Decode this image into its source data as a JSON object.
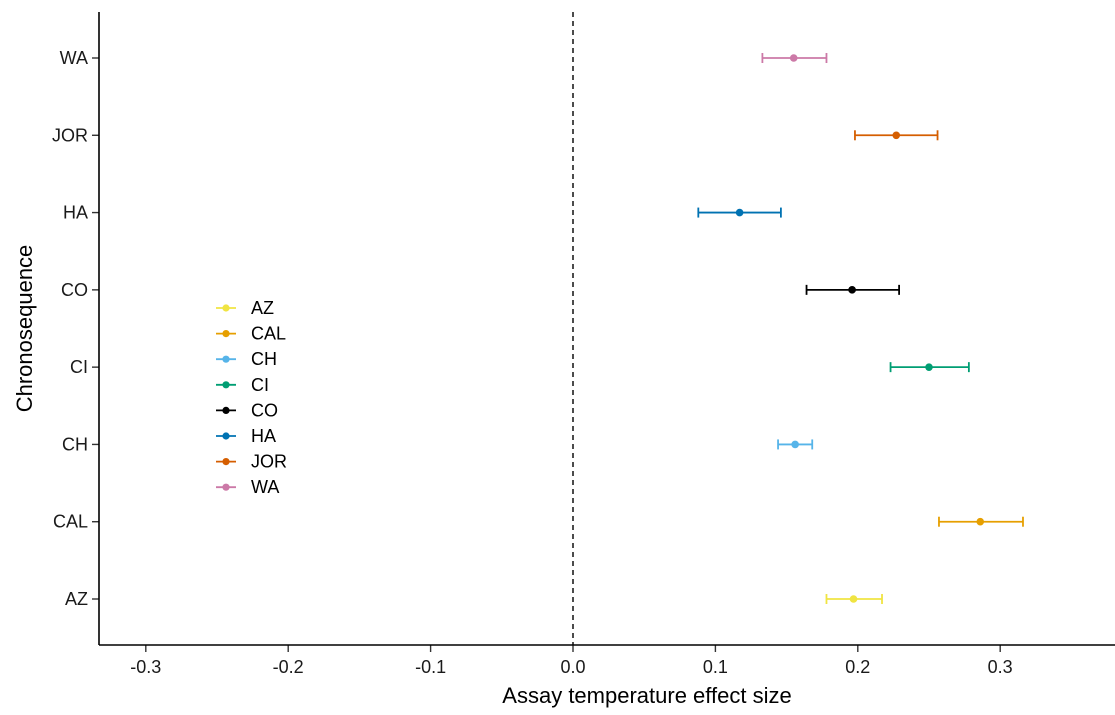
{
  "chart_data": {
    "type": "scatter",
    "subtype": "forest-plot-with-error-bars",
    "title": "",
    "xlabel": "Assay temperature effect size",
    "ylabel": "Chronosequence",
    "xlim": [
      -0.33,
      0.38
    ],
    "x_ticks": [
      -0.3,
      -0.2,
      -0.1,
      0.0,
      0.1,
      0.2,
      0.3
    ],
    "x_tick_labels": [
      "-0.3",
      "-0.2",
      "-0.1",
      "0.0",
      "0.1",
      "0.2",
      "0.3"
    ],
    "categories": [
      "AZ",
      "CAL",
      "CH",
      "CI",
      "CO",
      "HA",
      "JOR",
      "WA"
    ],
    "reference_line": {
      "x": 0.0,
      "style": "dashed"
    },
    "grid": false,
    "legend_position": "left",
    "series": [
      {
        "name": "AZ",
        "color": "#F0E442",
        "estimate": 0.197,
        "lower": 0.178,
        "upper": 0.217
      },
      {
        "name": "CAL",
        "color": "#E69F00",
        "estimate": 0.286,
        "lower": 0.257,
        "upper": 0.316
      },
      {
        "name": "CH",
        "color": "#56B4E9",
        "estimate": 0.156,
        "lower": 0.144,
        "upper": 0.168
      },
      {
        "name": "CI",
        "color": "#009E73",
        "estimate": 0.25,
        "lower": 0.223,
        "upper": 0.278
      },
      {
        "name": "CO",
        "color": "#000000",
        "estimate": 0.196,
        "lower": 0.164,
        "upper": 0.229
      },
      {
        "name": "HA",
        "color": "#0072B2",
        "estimate": 0.117,
        "lower": 0.088,
        "upper": 0.146
      },
      {
        "name": "JOR",
        "color": "#D55E00",
        "estimate": 0.227,
        "lower": 0.198,
        "upper": 0.256
      },
      {
        "name": "WA",
        "color": "#CC79A7",
        "estimate": 0.155,
        "lower": 0.133,
        "upper": 0.178
      }
    ]
  }
}
